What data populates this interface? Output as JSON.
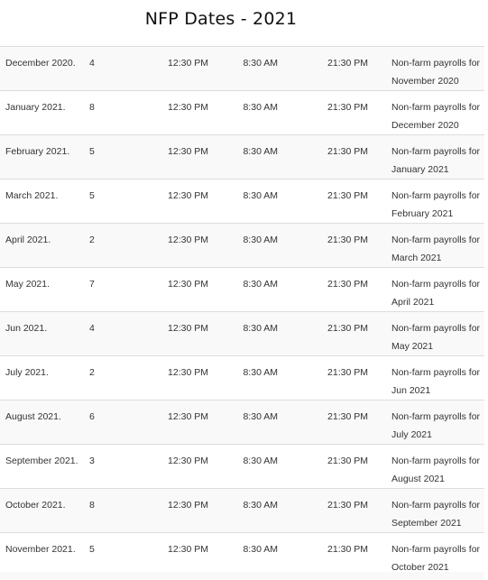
{
  "page": {
    "title": "NFP Dates - 2021"
  },
  "rows": [
    {
      "month": "December 2020.",
      "day": "4",
      "gmt": "12:30 PM",
      "et": "8:30 AM",
      "local": "21:30 PM",
      "desc_line1": "Non-farm payrolls for",
      "desc_line2": "November 2020"
    },
    {
      "month": "January 2021.",
      "day": "8",
      "gmt": "12:30 PM",
      "et": "8:30 AM",
      "local": "21:30 PM",
      "desc_line1": "Non-farm payrolls for",
      "desc_line2": "December 2020"
    },
    {
      "month": "February 2021.",
      "day": "5",
      "gmt": "12:30 PM",
      "et": "8:30 AM",
      "local": "21:30 PM",
      "desc_line1": "Non-farm payrolls for",
      "desc_line2": "January 2021"
    },
    {
      "month": "March 2021.",
      "day": "5",
      "gmt": "12:30 PM",
      "et": "8:30 AM",
      "local": "21:30 PM",
      "desc_line1": "Non-farm payrolls for",
      "desc_line2": "February 2021"
    },
    {
      "month": "April 2021.",
      "day": "2",
      "gmt": "12:30 PM",
      "et": "8:30 AM",
      "local": "21:30 PM",
      "desc_line1": "Non-farm payrolls for",
      "desc_line2": "March 2021"
    },
    {
      "month": "May 2021.",
      "day": "7",
      "gmt": "12:30 PM",
      "et": "8:30 AM",
      "local": "21:30 PM",
      "desc_line1": "Non-farm payrolls for",
      "desc_line2": "April 2021"
    },
    {
      "month": "Jun 2021.",
      "day": "4",
      "gmt": "12:30 PM",
      "et": "8:30 AM",
      "local": "21:30 PM",
      "desc_line1": "Non-farm payrolls for",
      "desc_line2": "May 2021"
    },
    {
      "month": "July 2021.",
      "day": "2",
      "gmt": "12:30 PM",
      "et": "8:30 AM",
      "local": "21:30 PM",
      "desc_line1": "Non-farm payrolls for",
      "desc_line2": "Jun 2021"
    },
    {
      "month": "August 2021.",
      "day": "6",
      "gmt": "12:30 PM",
      "et": "8:30 AM",
      "local": "21:30 PM",
      "desc_line1": "Non-farm payrolls for",
      "desc_line2": "July 2021"
    },
    {
      "month": "September 2021.",
      "day": "3",
      "gmt": "12:30 PM",
      "et": "8:30 AM",
      "local": "21:30 PM",
      "desc_line1": "Non-farm payrolls for",
      "desc_line2": "August 2021"
    },
    {
      "month": "October 2021.",
      "day": "8",
      "gmt": "12:30 PM",
      "et": "8:30 AM",
      "local": "21:30 PM",
      "desc_line1": "Non-farm payrolls for",
      "desc_line2": "September 2021"
    },
    {
      "month": "November 2021.",
      "day": "5",
      "gmt": "12:30 PM",
      "et": "8:30 AM",
      "local": "21:30 PM",
      "desc_line1": "Non-farm payrolls for",
      "desc_line2": "October 2021"
    }
  ],
  "colors": {
    "stripe": "#f9f9f9",
    "row_border": "#dddddd",
    "text": "#333333",
    "title": "#111111"
  }
}
